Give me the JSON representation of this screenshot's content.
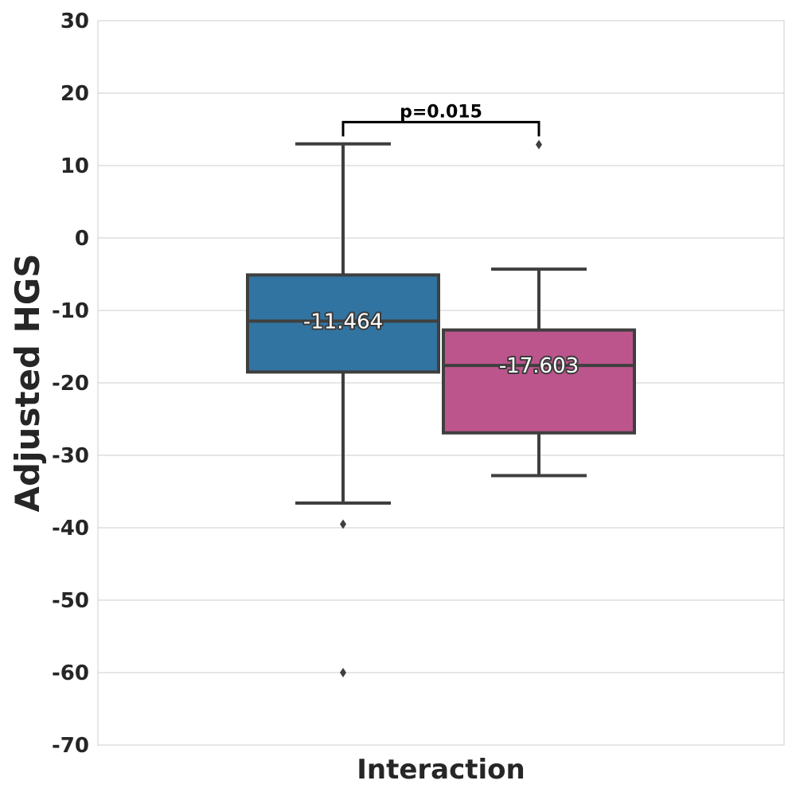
{
  "chart_data": {
    "type": "box",
    "ylabel": "Adjusted HGS",
    "xlabel": "Interaction",
    "ylim": [
      -70,
      30
    ],
    "yticks": [
      30,
      20,
      10,
      0,
      -10,
      -20,
      -30,
      -40,
      -50,
      -60,
      -70
    ],
    "ytick_labels": [
      "30",
      "20",
      "10",
      "0",
      "-10",
      "-20",
      "-30",
      "-40",
      "-50",
      "-60",
      "-70"
    ],
    "grid": "horizontal",
    "boxes": [
      {
        "color": "#3274a1",
        "whisker_low": -36.6,
        "q1": -18.5,
        "median": -11.464,
        "q3": -5.1,
        "whisker_high": 13.0,
        "outliers": [
          -39.5,
          -60.0
        ],
        "median_label": "-11.464"
      },
      {
        "color": "#bd558d",
        "whisker_low": -32.8,
        "q1": -26.9,
        "median": -17.603,
        "q3": -12.7,
        "whisker_high": -4.3,
        "outliers": [
          12.9
        ],
        "median_label": "-17.603"
      }
    ],
    "annotation": {
      "text": "p=0.015",
      "y": 16.0
    }
  }
}
